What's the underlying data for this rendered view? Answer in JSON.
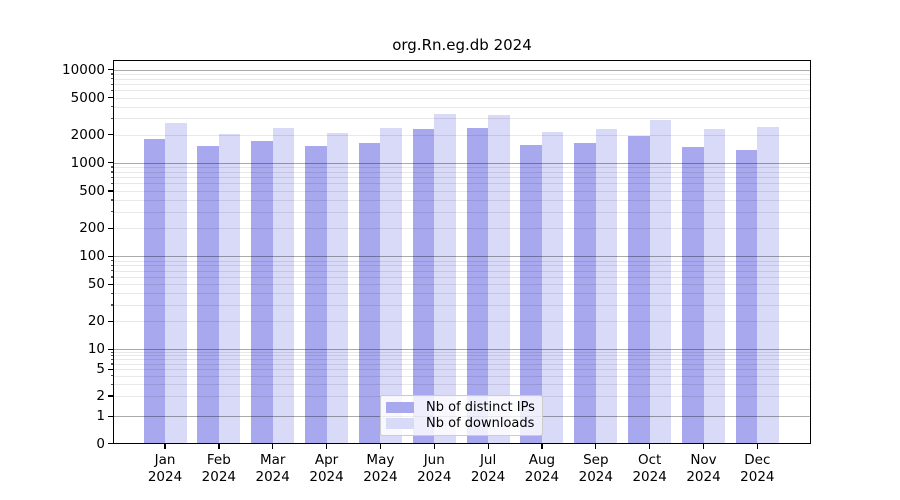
{
  "chart_data": {
    "type": "bar",
    "title": "org.Rn.eg.db 2024",
    "categories": [
      "Jan",
      "Feb",
      "Mar",
      "Apr",
      "May",
      "Jun",
      "Jul",
      "Aug",
      "Sep",
      "Oct",
      "Nov",
      "Dec"
    ],
    "year_label": "2024",
    "series": [
      {
        "name": "Nb of distinct IPs",
        "color": "#a8a8ef",
        "values": [
          1790,
          1520,
          1700,
          1530,
          1610,
          2310,
          2380,
          1550,
          1620,
          1930,
          1460,
          1360
        ]
      },
      {
        "name": "Nb of downloads",
        "color": "#d9d9f8",
        "values": [
          2650,
          2020,
          2350,
          2080,
          2340,
          3370,
          3270,
          2160,
          2320,
          2850,
          2320,
          2400
        ]
      }
    ],
    "yscale": "symlog",
    "y_ticks": [
      10000,
      5000,
      2000,
      1000,
      500,
      200,
      100,
      50,
      20,
      10,
      5,
      2,
      1,
      0
    ],
    "ylim": [
      0,
      12500
    ],
    "grid": "on",
    "legend_position": "lower center",
    "grid_major_color": "#ababab",
    "grid_minor_color": "#e8e8e8"
  }
}
